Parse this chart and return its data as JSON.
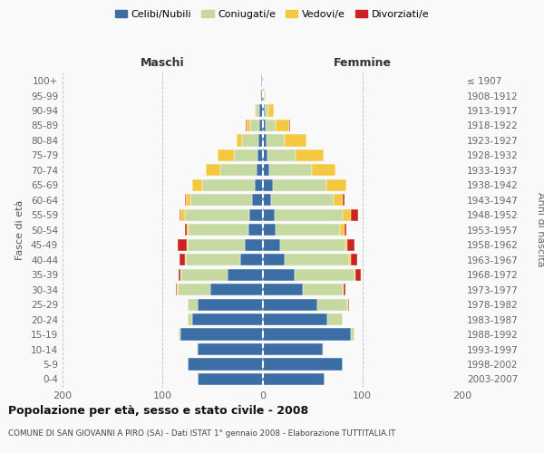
{
  "age_groups": [
    "0-4",
    "5-9",
    "10-14",
    "15-19",
    "20-24",
    "25-29",
    "30-34",
    "35-39",
    "40-44",
    "45-49",
    "50-54",
    "55-59",
    "60-64",
    "65-69",
    "70-74",
    "75-79",
    "80-84",
    "85-89",
    "90-94",
    "95-99",
    "100+"
  ],
  "birth_years": [
    "2003-2007",
    "1998-2002",
    "1993-1997",
    "1988-1992",
    "1983-1987",
    "1978-1982",
    "1973-1977",
    "1968-1972",
    "1963-1967",
    "1958-1962",
    "1953-1957",
    "1948-1952",
    "1943-1947",
    "1938-1942",
    "1933-1937",
    "1928-1932",
    "1923-1927",
    "1918-1922",
    "1913-1917",
    "1908-1912",
    "≤ 1907"
  ],
  "male_celibi": [
    65,
    75,
    65,
    82,
    70,
    65,
    52,
    35,
    22,
    18,
    14,
    13,
    10,
    8,
    6,
    5,
    4,
    3,
    3,
    1,
    1
  ],
  "male_coniugati": [
    0,
    0,
    1,
    2,
    5,
    10,
    33,
    46,
    55,
    57,
    60,
    65,
    62,
    52,
    36,
    24,
    16,
    9,
    4,
    1,
    0
  ],
  "male_vedovi": [
    0,
    0,
    0,
    0,
    0,
    0,
    1,
    1,
    1,
    1,
    2,
    4,
    5,
    10,
    15,
    16,
    6,
    4,
    1,
    0,
    0
  ],
  "male_divorziati": [
    0,
    0,
    0,
    0,
    0,
    0,
    1,
    2,
    5,
    9,
    2,
    1,
    1,
    0,
    0,
    0,
    0,
    1,
    0,
    0,
    0
  ],
  "female_celibi": [
    62,
    80,
    60,
    88,
    65,
    55,
    40,
    32,
    22,
    18,
    13,
    12,
    9,
    10,
    7,
    5,
    4,
    3,
    2,
    1,
    0
  ],
  "female_coniugati": [
    0,
    0,
    1,
    4,
    15,
    30,
    40,
    60,
    65,
    65,
    65,
    68,
    62,
    54,
    42,
    28,
    18,
    10,
    4,
    1,
    0
  ],
  "female_vedovi": [
    0,
    0,
    0,
    0,
    0,
    1,
    1,
    1,
    1,
    2,
    4,
    8,
    9,
    20,
    24,
    28,
    22,
    14,
    5,
    1,
    0
  ],
  "female_divorziati": [
    0,
    0,
    0,
    0,
    0,
    1,
    2,
    5,
    7,
    7,
    2,
    8,
    2,
    0,
    0,
    0,
    0,
    1,
    0,
    0,
    0
  ],
  "colors": {
    "celibi": "#3a6ea5",
    "coniugati": "#c5d9a0",
    "vedovi": "#f5c842",
    "divorziati": "#cc2222"
  },
  "title": "Popolazione per età, sesso e stato civile - 2008",
  "subtitle": "COMUNE DI SAN GIOVANNI A PIRO (SA) - Dati ISTAT 1° gennaio 2008 - Elaborazione TUTTITALIA.IT",
  "label_maschi": "Maschi",
  "label_femmine": "Femmine",
  "ylabel_left": "Fasce di età",
  "ylabel_right": "Anni di nascita",
  "legend_labels": [
    "Celibi/Nubili",
    "Coniugati/e",
    "Vedovi/e",
    "Divorziati/e"
  ],
  "xlim": 200,
  "bg_color": "#f9f9f9",
  "grid_color": "#c8c8c8"
}
